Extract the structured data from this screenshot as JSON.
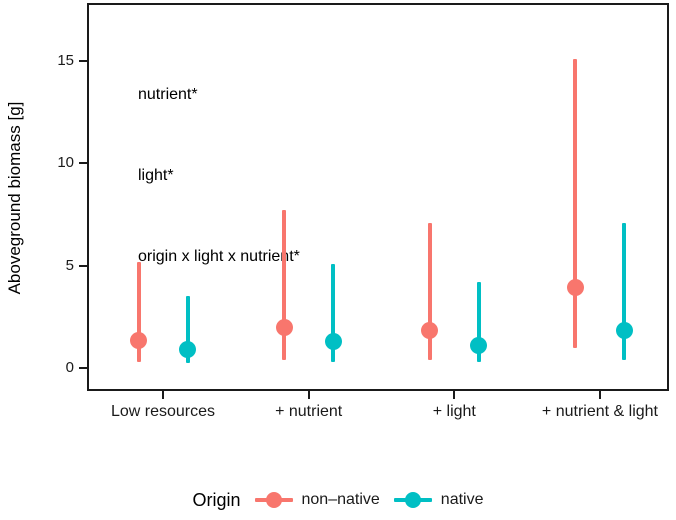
{
  "chart_data": {
    "type": "pointrange",
    "title": "",
    "ylabel": "Aboveground biomass [g]",
    "xlabel": "",
    "categories": [
      "Low resources",
      "+ nutrient",
      "+ light",
      "+ nutrient & light"
    ],
    "yticks": [
      0,
      5,
      10,
      15
    ],
    "ylim": [
      -1.1,
      17.9
    ],
    "grid": false,
    "panel_border": true,
    "annotations": [
      "nutrient*",
      "light*",
      "origin x light x nutrient*"
    ],
    "legend": {
      "title": "Origin",
      "position": "bottom"
    },
    "series": [
      {
        "name": "non–native",
        "color": "#F8766D",
        "means": [
          1.35,
          2.0,
          1.85,
          3.95
        ],
        "lower": [
          0.3,
          0.4,
          0.4,
          1.0
        ],
        "upper": [
          5.2,
          7.7,
          7.1,
          15.1
        ]
      },
      {
        "name": "native",
        "color": "#00BFC4",
        "means": [
          0.9,
          1.3,
          1.1,
          1.85
        ],
        "lower": [
          0.25,
          0.3,
          0.3,
          0.4
        ],
        "upper": [
          3.5,
          5.1,
          4.2,
          7.1
        ]
      }
    ]
  }
}
